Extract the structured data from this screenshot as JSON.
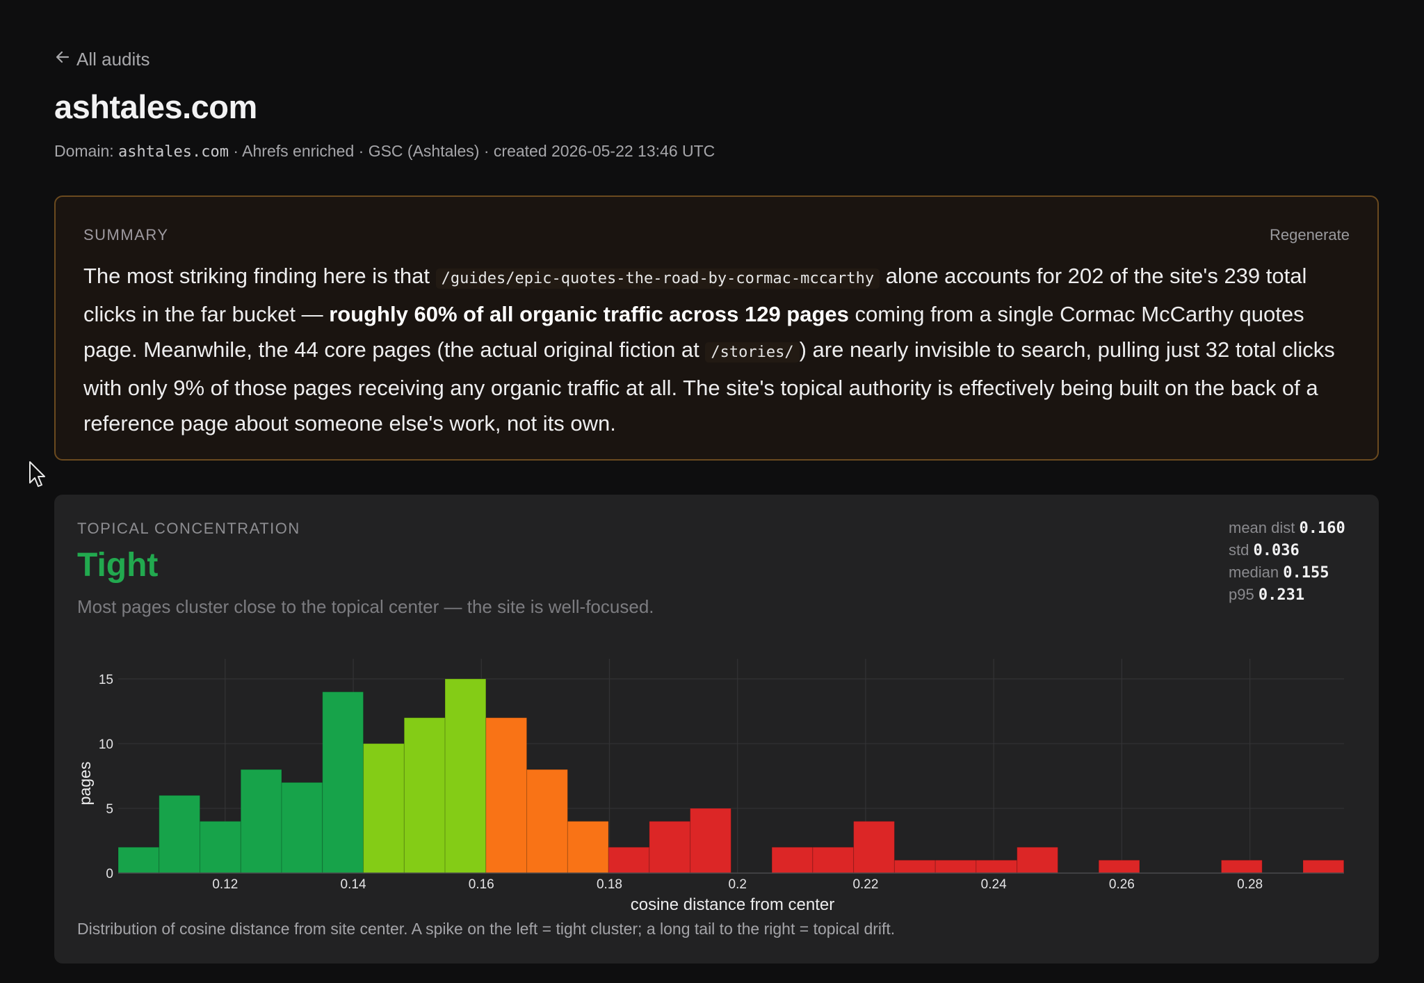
{
  "nav": {
    "back_label": "All audits",
    "back_icon": "arrow-left-icon"
  },
  "page": {
    "title": "ashtales.com"
  },
  "meta": {
    "domain_prefix": "Domain: ",
    "domain": "ashtales.com",
    "rest": " · Ahrefs enriched · GSC (Ashtales) · created 2026-05-22 13:46 UTC"
  },
  "summary": {
    "label": "SUMMARY",
    "regenerate_label": "Regenerate",
    "parts": {
      "p1": "The most striking finding here is that ",
      "code1": "/guides/epic-quotes-the-road-by-cormac-mccarthy",
      "p2": " alone accounts for 202 of the site's 239 total clicks in the far bucket — ",
      "bold1": "roughly 60% of all organic traffic across 129 pages",
      "p3": " coming from a single Cormac McCarthy quotes page. Meanwhile, the 44 core pages (the actual original fiction at ",
      "code2": "/stories/",
      "p4": ") are nearly invisible to search, pulling just 32 total clicks with only 9% of those pages receiving any organic traffic at all. The site's topical authority is effectively being built on the back of a reference page about someone else's work, not its own."
    }
  },
  "topical": {
    "label": "TOPICAL CONCENTRATION",
    "verdict": "Tight",
    "verdict_color": "#22a94f",
    "description": "Most pages cluster close to the topical center — the site is well-focused.",
    "stats": [
      {
        "label": "mean dist",
        "value": "0.160"
      },
      {
        "label": "std",
        "value": "0.036"
      },
      {
        "label": "median",
        "value": "0.155"
      },
      {
        "label": "p95",
        "value": "0.231"
      }
    ],
    "caption": "Distribution of cosine distance from site center. A spike on the left = tight cluster; a long tail to the right = topical drift."
  },
  "colors": {
    "dark_green": "#17a34a",
    "light_green": "#84cc16",
    "orange": "#f97316",
    "red": "#dc2626"
  },
  "chart_data": {
    "type": "bar",
    "title": "",
    "xlabel": "cosine distance from center",
    "ylabel": "pages",
    "xlim": [
      0.1033,
      0.2947
    ],
    "ylim": [
      0,
      15.8
    ],
    "xticks": [
      0.12,
      0.14,
      0.16,
      0.18,
      0.2,
      0.22,
      0.24,
      0.26,
      0.28
    ],
    "xtick_labels": [
      "0.12",
      "0.14",
      "0.16",
      "0.18",
      "0.2",
      "0.22",
      "0.24",
      "0.26",
      "0.28"
    ],
    "yticks": [
      0,
      5,
      10,
      15
    ],
    "ytick_labels": [
      "0",
      "5",
      "10",
      "15"
    ],
    "grid": true,
    "bin_start": 0.1033,
    "bin_width": 0.006379,
    "bins": [
      {
        "count": 2,
        "color": "dark_green"
      },
      {
        "count": 6,
        "color": "dark_green"
      },
      {
        "count": 4,
        "color": "dark_green"
      },
      {
        "count": 8,
        "color": "dark_green"
      },
      {
        "count": 7,
        "color": "dark_green"
      },
      {
        "count": 14,
        "color": "dark_green"
      },
      {
        "count": 10,
        "color": "light_green"
      },
      {
        "count": 12,
        "color": "light_green"
      },
      {
        "count": 15,
        "color": "light_green"
      },
      {
        "count": 12,
        "color": "orange"
      },
      {
        "count": 8,
        "color": "orange"
      },
      {
        "count": 4,
        "color": "orange"
      },
      {
        "count": 2,
        "color": "red"
      },
      {
        "count": 4,
        "color": "red"
      },
      {
        "count": 5,
        "color": "red"
      },
      {
        "count": 0,
        "color": "red"
      },
      {
        "count": 2,
        "color": "red"
      },
      {
        "count": 2,
        "color": "red"
      },
      {
        "count": 4,
        "color": "red"
      },
      {
        "count": 1,
        "color": "red"
      },
      {
        "count": 1,
        "color": "red"
      },
      {
        "count": 1,
        "color": "red"
      },
      {
        "count": 2,
        "color": "red"
      },
      {
        "count": 0,
        "color": "red"
      },
      {
        "count": 1,
        "color": "red"
      },
      {
        "count": 0,
        "color": "red"
      },
      {
        "count": 0,
        "color": "red"
      },
      {
        "count": 1,
        "color": "red"
      },
      {
        "count": 0,
        "color": "red"
      },
      {
        "count": 1,
        "color": "red"
      }
    ]
  }
}
